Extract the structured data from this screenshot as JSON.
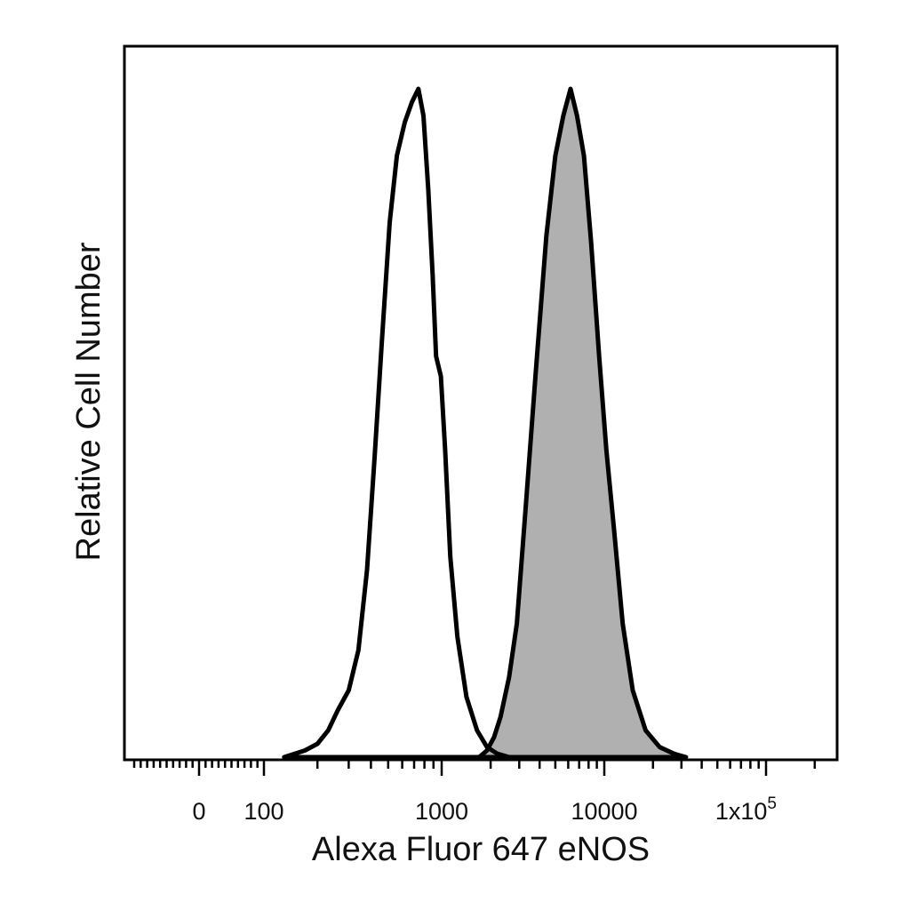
{
  "chart_data": {
    "type": "histogram",
    "xlabel": "Alexa Fluor 647 eNOS",
    "ylabel": "Relative Cell Number",
    "x_scale": "logicle (biexponential)",
    "x_tick_labels": [
      {
        "value": 0,
        "label": "0"
      },
      {
        "value": 100,
        "label": "100"
      },
      {
        "value": 1000,
        "label": "1000"
      },
      {
        "value": 10000,
        "label": "10000"
      },
      {
        "value": 100000,
        "label": "1x10",
        "superscript": "5"
      }
    ],
    "grid": false,
    "legend": "none",
    "series": [
      {
        "style": "outline",
        "fill": "#ffffff",
        "stroke": "#000000",
        "points": [
          [
            130,
            0.0
          ],
          [
            170,
            0.01
          ],
          [
            200,
            0.02
          ],
          [
            230,
            0.04
          ],
          [
            260,
            0.07
          ],
          [
            300,
            0.1
          ],
          [
            340,
            0.16
          ],
          [
            380,
            0.28
          ],
          [
            420,
            0.45
          ],
          [
            460,
            0.62
          ],
          [
            510,
            0.8
          ],
          [
            560,
            0.9
          ],
          [
            620,
            0.95
          ],
          [
            680,
            0.98
          ],
          [
            740,
            1.0
          ],
          [
            790,
            0.96
          ],
          [
            840,
            0.85
          ],
          [
            890,
            0.72
          ],
          [
            930,
            0.6
          ],
          [
            990,
            0.57
          ],
          [
            1050,
            0.46
          ],
          [
            1130,
            0.3
          ],
          [
            1250,
            0.18
          ],
          [
            1420,
            0.09
          ],
          [
            1650,
            0.04
          ],
          [
            1900,
            0.015
          ],
          [
            2200,
            0.005
          ],
          [
            2600,
            0.0
          ]
        ]
      },
      {
        "style": "filled",
        "fill": "#b0b0b0",
        "stroke": "#000000",
        "points": [
          [
            1700,
            0.0
          ],
          [
            1900,
            0.01
          ],
          [
            2100,
            0.03
          ],
          [
            2300,
            0.06
          ],
          [
            2600,
            0.12
          ],
          [
            2900,
            0.2
          ],
          [
            3300,
            0.38
          ],
          [
            3800,
            0.58
          ],
          [
            4400,
            0.78
          ],
          [
            5000,
            0.9
          ],
          [
            5600,
            0.96
          ],
          [
            6200,
            1.0
          ],
          [
            6800,
            0.96
          ],
          [
            7500,
            0.9
          ],
          [
            8300,
            0.77
          ],
          [
            9300,
            0.6
          ],
          [
            10300,
            0.46
          ],
          [
            11500,
            0.34
          ],
          [
            13000,
            0.2
          ],
          [
            15000,
            0.1
          ],
          [
            18000,
            0.04
          ],
          [
            22000,
            0.015
          ],
          [
            27000,
            0.005
          ],
          [
            32000,
            0.0
          ]
        ]
      }
    ]
  }
}
